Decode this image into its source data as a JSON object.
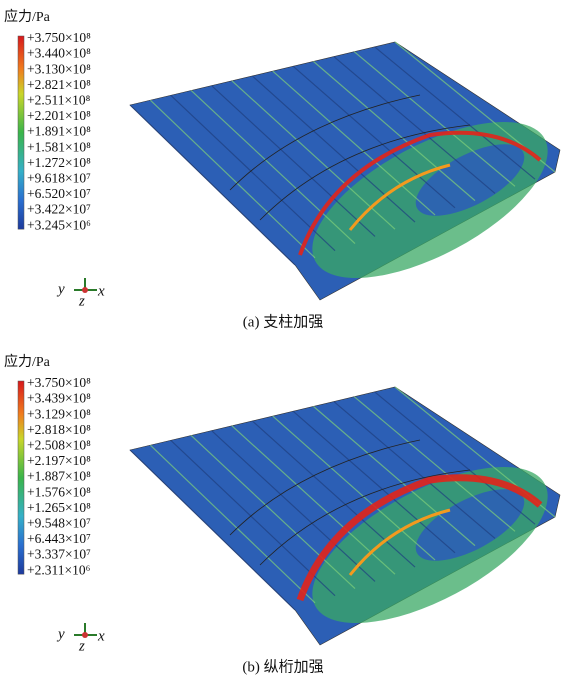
{
  "panels": [
    {
      "legend_title": "应力/Pa",
      "legend_labels": [
        "+3.750×10⁸",
        "+3.440×10⁸",
        "+3.130×10⁸",
        "+2.821×10⁸",
        "+2.511×10⁸",
        "+2.201×10⁸",
        "+1.891×10⁸",
        "+1.581×10⁸",
        "+1.272×10⁸",
        "+9.618×10⁷",
        "+6.520×10⁷",
        "+3.422×10⁷",
        "+3.245×10⁶"
      ],
      "axes": {
        "y": "y",
        "z": "z",
        "x": "x"
      },
      "caption": "(a) 支柱加强"
    },
    {
      "legend_title": "应力/Pa",
      "legend_labels": [
        "+3.750×10⁸",
        "+3.439×10⁸",
        "+3.129×10⁸",
        "+2.818×10⁸",
        "+2.508×10⁸",
        "+2.197×10⁸",
        "+1.887×10⁸",
        "+1.576×10⁸",
        "+1.265×10⁸",
        "+9.548×10⁷",
        "+6.443×10⁷",
        "+3.337×10⁷",
        "+2.311×10⁶"
      ],
      "axes": {
        "y": "y",
        "z": "z",
        "x": "x"
      },
      "caption": "(b) 纵桁加强"
    }
  ]
}
